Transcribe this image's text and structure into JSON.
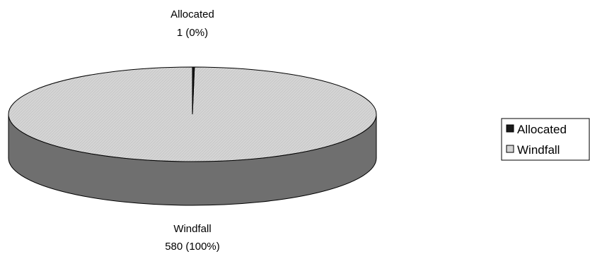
{
  "chart_data": {
    "type": "pie",
    "style": "3d",
    "categories": [
      "Allocated",
      "Windfall"
    ],
    "values": [
      1,
      580
    ],
    "data_labels": [
      {
        "name": "Allocated",
        "value_text": "1  (0%)"
      },
      {
        "name": "Windfall",
        "value_text": "580  (100%)"
      }
    ],
    "legend": {
      "placement": "right",
      "items": [
        {
          "label": "Allocated",
          "color": "#1a1a1a"
        },
        {
          "label": "Windfall",
          "color": "#d4d4d4"
        }
      ]
    },
    "colors": {
      "allocated": "#1a1a1a",
      "windfall_top": "#d4d4d4",
      "windfall_side": "#6f6f6f",
      "outline": "#000000"
    }
  }
}
